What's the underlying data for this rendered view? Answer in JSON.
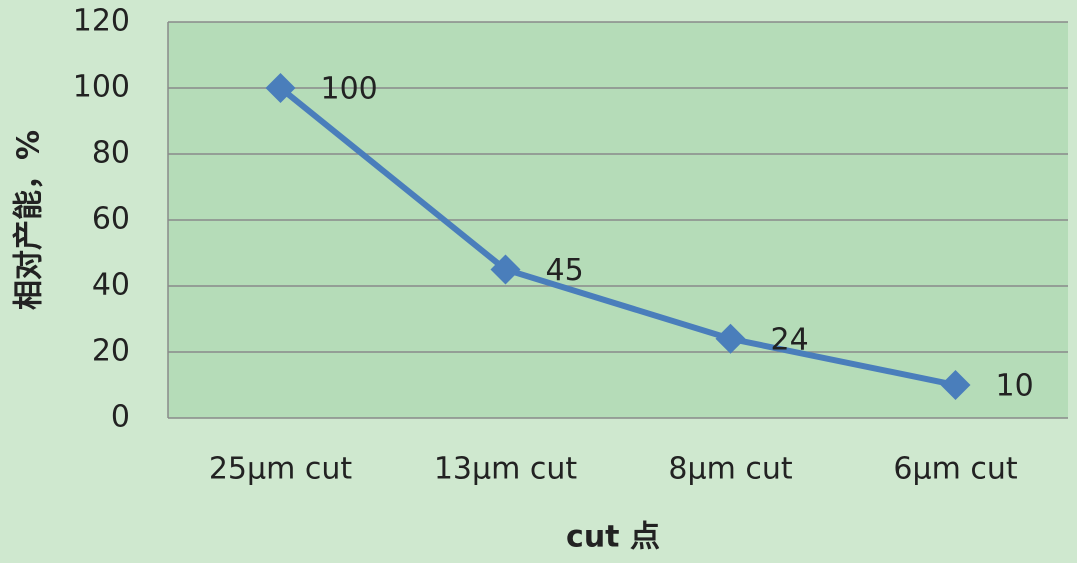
{
  "chart_data": {
    "type": "line",
    "x_label": "cut 点",
    "y_label": "相对产能，%",
    "categories": [
      "25μm cut",
      "13μm cut",
      "8μm cut",
      "6μm cut"
    ],
    "series": [
      {
        "name": "相对产能",
        "color": "#4a7ebb",
        "values": [
          100,
          45,
          24,
          10
        ]
      }
    ],
    "ylim": [
      0,
      120
    ],
    "yticks": [
      0,
      20,
      40,
      60,
      80,
      100,
      120
    ],
    "grid": true,
    "data_labels": true
  }
}
